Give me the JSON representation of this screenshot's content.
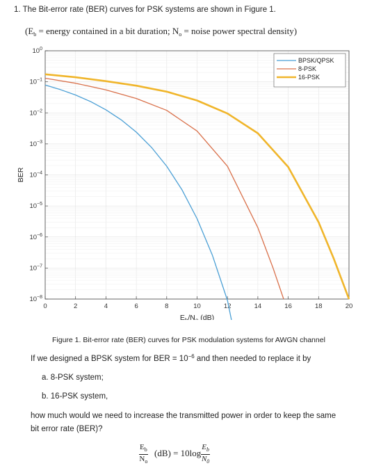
{
  "question": {
    "number": "1.",
    "intro": "The Bit-error rate (BER) curves for PSK systems are shown in Figure 1.",
    "definitions": {
      "open": "(E",
      "eb_sub": "b",
      "eb_def": " = energy contained in a bit duration; N",
      "n0_sub": "o",
      "n0_def": " = noise power spectral density)"
    },
    "caption": "Figure 1. Bit-error rate (BER) curves for PSK modulation systems for AWGN channel",
    "prompt_before": "If we designed a BPSK system for BER = 10",
    "prompt_exp": "−6",
    "prompt_after": " and then needed to replace it by",
    "option_a": "a.  8-PSK system;",
    "option_b": "b.  16-PSK system,",
    "closing_line1": "how much would we need to increase the transmitted power in order to keep the same",
    "closing_line2": "bit error rate (BER)?"
  },
  "formula": {
    "lhs_num": "E",
    "lhs_num_sub": "b",
    "lhs_den": "N",
    "lhs_den_sub": "o",
    "unit": "(dB) = 10log",
    "rhs_num": "E",
    "rhs_num_sub": "b",
    "rhs_den": "N",
    "rhs_den_sub": "0"
  },
  "chart_data": {
    "type": "line",
    "xlabel": "E_b/N_o (dB)",
    "ylabel": "BER",
    "xlim": [
      0,
      20
    ],
    "ylim_log10": [
      -8,
      0
    ],
    "y_scale": "log",
    "grid": true,
    "legend_position": "top-right",
    "x_ticks": [
      "0",
      "2",
      "4",
      "6",
      "8",
      "10",
      "12",
      "14",
      "16",
      "18",
      "20"
    ],
    "y_ticks": [
      "10^0",
      "10^-1",
      "10^-2",
      "10^-3",
      "10^-4",
      "10^-5",
      "10^-6",
      "10^-7",
      "10^-8"
    ],
    "series": [
      {
        "name": "BPSK/QPSK",
        "color": "#4a9fd5",
        "x": [
          0,
          1,
          2,
          3,
          4,
          5,
          6,
          7,
          8,
          9,
          10,
          11,
          12,
          12.4
        ],
        "y": [
          0.0786,
          0.0563,
          0.0375,
          0.0229,
          0.0125,
          0.00595,
          0.00239,
          0.000773,
          0.000191,
          3.36e-05,
          3.87e-06,
          2.62e-07,
          9.01e-09,
          1e-09
        ]
      },
      {
        "name": "8-PSK",
        "color": "#d9704a",
        "x": [
          0,
          2,
          4,
          6,
          8,
          10,
          12,
          14,
          15,
          15.7
        ],
        "y": [
          0.13,
          0.09,
          0.055,
          0.029,
          0.012,
          0.0026,
          0.00019,
          2e-06,
          1e-07,
          1e-08
        ]
      },
      {
        "name": "16-PSK",
        "color": "#f0b52a",
        "x": [
          0,
          2,
          4,
          6,
          8,
          10,
          12,
          14,
          16,
          18,
          19,
          20
        ],
        "y": [
          0.175,
          0.14,
          0.105,
          0.075,
          0.048,
          0.025,
          0.0095,
          0.0022,
          0.00018,
          3e-06,
          2e-07,
          1e-08
        ]
      }
    ]
  }
}
